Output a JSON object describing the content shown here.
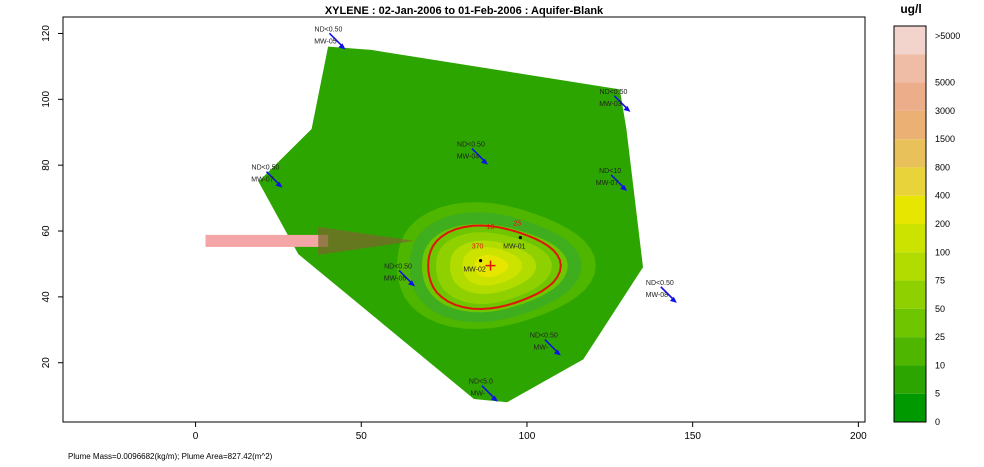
{
  "chart_data": {
    "type": "contour",
    "title": "XYLENE  : 02-Jan-2006 to 01-Feb-2006 : Aquifer-Blank",
    "xlim": [
      -40,
      202
    ],
    "ylim": [
      2,
      125
    ],
    "x_ticks": [
      0,
      50,
      100,
      150,
      200
    ],
    "y_ticks": [
      20,
      40,
      60,
      80,
      100,
      120
    ],
    "footer": "Plume Mass=0.0096682(kg/m);  Plume Area=827.42(m^2)",
    "legend": {
      "unit": "ug/l",
      "levels": [
        ">5000",
        "5000",
        "3000",
        "1500",
        "800",
        "400",
        "200",
        "100",
        "75",
        "50",
        "25",
        "10",
        "5",
        "0"
      ],
      "colors": [
        "#f2d4cc",
        "#efbca6",
        "#ecae8a",
        "#ebb074",
        "#e9c15a",
        "#e8d43a",
        "#e6e600",
        "#cce300",
        "#b2dc00",
        "#8fd100",
        "#6ec500",
        "#4fb600",
        "#2da500",
        "#009a00"
      ]
    },
    "wells": [
      {
        "name": "MW-05",
        "label": "ND<0.50",
        "x": 41,
        "y": 117
      },
      {
        "name": "MW-03",
        "label": "ND<0.50",
        "x": 127,
        "y": 98
      },
      {
        "name": "MW-04",
        "label": "ND<0.50",
        "x": 84,
        "y": 82
      },
      {
        "name": "MW-07",
        "label": "ND<0.50",
        "x": 22,
        "y": 75
      },
      {
        "name": "MW-07",
        "label": "ND<10",
        "x": 126,
        "y": 74
      },
      {
        "name": "MW-01",
        "label": "25",
        "x": 98,
        "y": 58
      },
      {
        "name": "MW-02",
        "label": "370",
        "x": 86,
        "y": 51
      },
      {
        "name": "MW-06",
        "label": "ND<0.50",
        "x": 62,
        "y": 45
      },
      {
        "name": "MW-08",
        "label": "ND<0.50",
        "x": 141,
        "y": 40
      },
      {
        "name": "MW-",
        "label": "ND<0.50",
        "x": 106,
        "y": 24
      },
      {
        "name": "MW-",
        "label": "ND<5.0",
        "x": 87,
        "y": 10
      }
    ],
    "contour_label": "10",
    "site_boundary": [
      [
        40,
        116
      ],
      [
        53,
        115
      ],
      [
        128,
        103
      ],
      [
        130,
        91
      ],
      [
        135,
        49
      ],
      [
        117,
        21
      ],
      [
        94,
        8
      ],
      [
        84,
        9
      ],
      [
        31,
        53
      ],
      [
        19,
        75
      ],
      [
        35,
        91
      ]
    ]
  }
}
